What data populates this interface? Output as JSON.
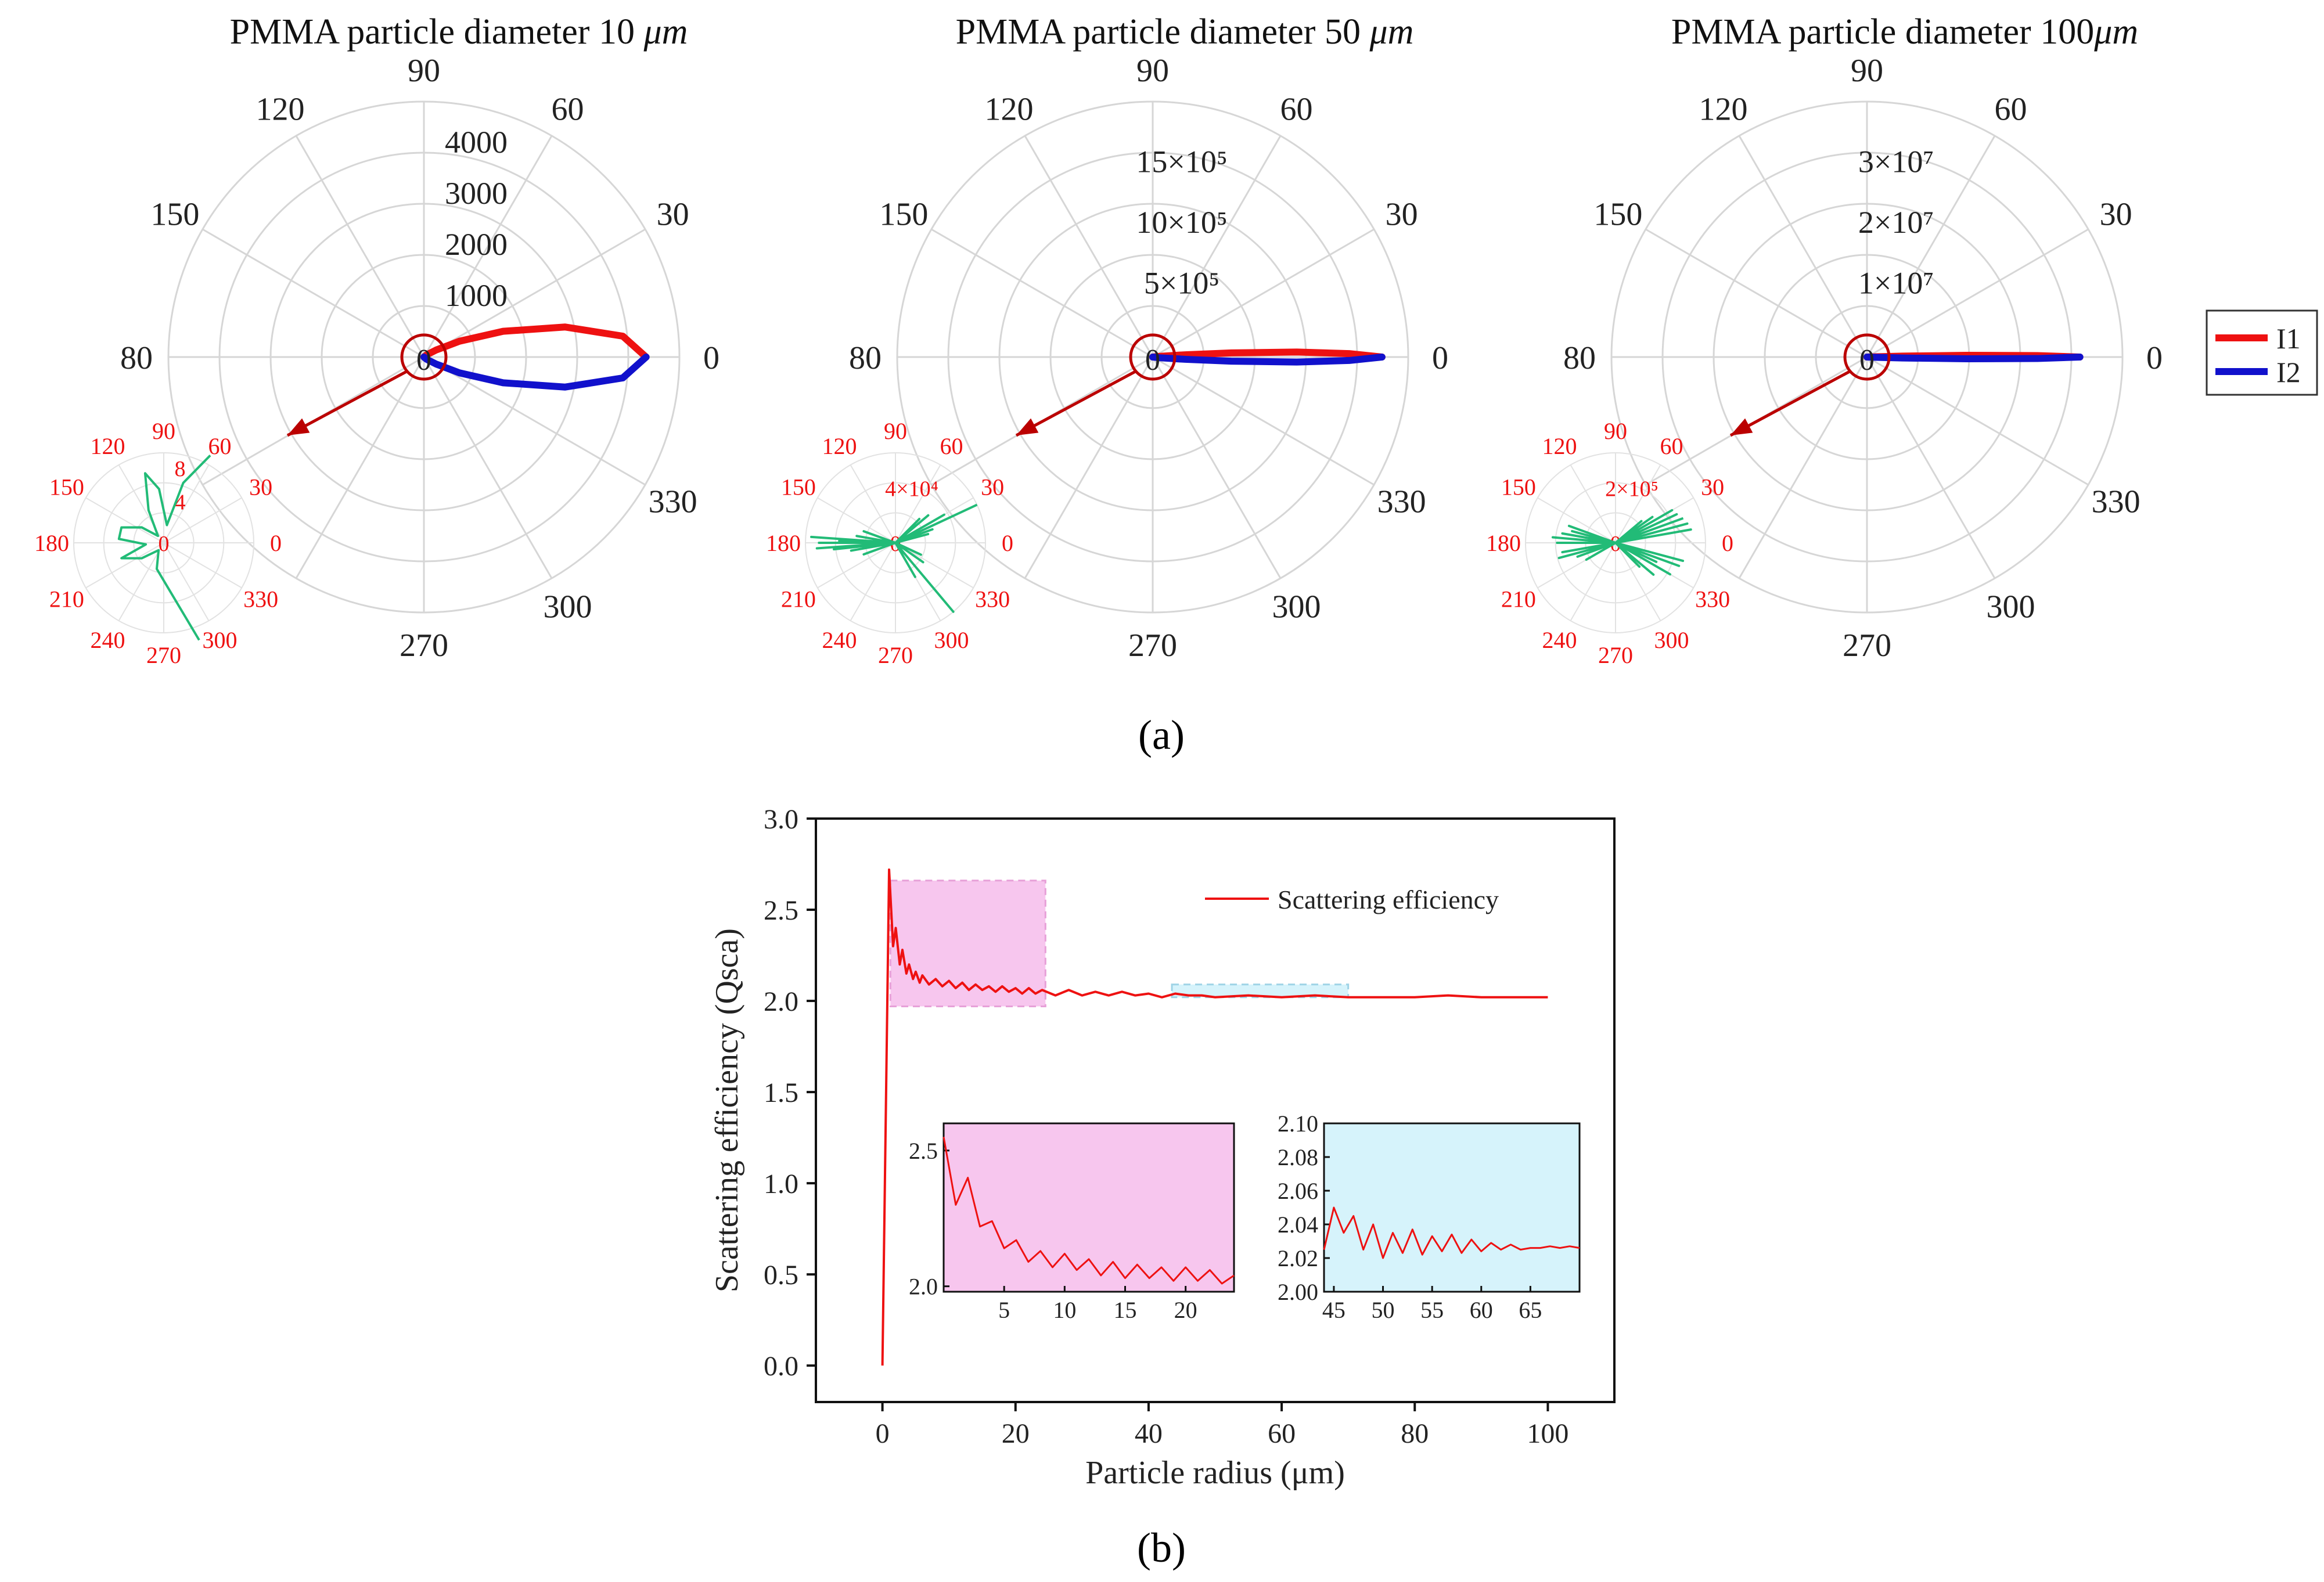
{
  "panel_labels": {
    "a": "(a)",
    "b": "(b)"
  },
  "legend": {
    "items": [
      {
        "label": "I1",
        "color": "#ee1111"
      },
      {
        "label": "I2",
        "color": "#1111cc"
      }
    ]
  },
  "colors": {
    "i1": "#ee1111",
    "i2": "#1111cc",
    "inset_polar": "#22bb77",
    "angle_inset": "#ee1111",
    "marker": "#bb0000",
    "grid": "#d6d6d6",
    "pink_box": "#f7c6ee",
    "blue_box": "#d6f3fb",
    "line_b": "#ee1111"
  },
  "chart_data": [
    {
      "type": "polar-line",
      "title_text": "PMMA particle diameter 10 ",
      "title_unit": "μm",
      "angle_labels": [
        "0",
        "30",
        "60",
        "90",
        "120",
        "150",
        "80",
        "270",
        "300",
        "330"
      ],
      "radial_ticks": [
        "1000",
        "2000",
        "3000",
        "4000"
      ],
      "rmax": 4600,
      "series": [
        {
          "name": "I1",
          "points": [
            [
              0,
              4000
            ],
            [
              6,
              3600
            ],
            [
              12,
              2600
            ],
            [
              18,
              1500
            ],
            [
              24,
              700
            ],
            [
              30,
              250
            ],
            [
              40,
              60
            ],
            [
              60,
              0
            ]
          ]
        },
        {
          "name": "I2",
          "points": [
            [
              0,
              4000
            ],
            [
              -6,
              3600
            ],
            [
              -12,
              2600
            ],
            [
              -18,
              1500
            ],
            [
              -24,
              700
            ],
            [
              -30,
              250
            ],
            [
              -40,
              60
            ],
            [
              -60,
              0
            ]
          ]
        }
      ],
      "inset": {
        "angle_labels": [
          "90",
          "60",
          "30",
          "0",
          "330",
          "300",
          "270",
          "240",
          "210",
          "180",
          "150",
          "120"
        ],
        "radial_ticks": [
          "4",
          "8"
        ],
        "center_label": "0",
        "rmax": 10,
        "points": [
          [
            62,
            11
          ],
          [
            72,
            7
          ],
          [
            80,
            2
          ],
          [
            95,
            6
          ],
          [
            105,
            8
          ],
          [
            115,
            4
          ],
          [
            130,
            1
          ],
          [
            145,
            3
          ],
          [
            160,
            5
          ],
          [
            175,
            5
          ],
          [
            185,
            2
          ],
          [
            200,
            5
          ],
          [
            215,
            3
          ],
          [
            235,
            1
          ],
          [
            255,
            3
          ],
          [
            290,
            14
          ]
        ]
      }
    },
    {
      "type": "polar-line",
      "title_text": "PMMA particle diameter 50 ",
      "title_unit": "μm",
      "angle_labels": [
        "0",
        "30",
        "60",
        "90",
        "120",
        "150",
        "80",
        "270",
        "300",
        "330"
      ],
      "radial_ticks": [
        "5×10⁵",
        "10×10⁵",
        "15×10⁵"
      ],
      "rmax": 1950000,
      "series": [
        {
          "name": "I1",
          "points": [
            [
              0,
              1750000
            ],
            [
              1,
              1500000
            ],
            [
              2,
              1100000
            ],
            [
              3,
              600000
            ],
            [
              4,
              250000
            ],
            [
              6,
              50000
            ],
            [
              10,
              0
            ]
          ]
        },
        {
          "name": "I2",
          "points": [
            [
              0,
              1750000
            ],
            [
              -1,
              1500000
            ],
            [
              -2,
              1100000
            ],
            [
              -3,
              600000
            ],
            [
              -4,
              250000
            ],
            [
              -6,
              50000
            ],
            [
              -10,
              0
            ]
          ]
        }
      ],
      "inset": {
        "angle_labels": [
          "90",
          "60",
          "30",
          "0",
          "330",
          "300",
          "270",
          "240",
          "210",
          "180",
          "150",
          "120"
        ],
        "radial_ticks": [
          "4×10⁴"
        ],
        "center_label": "0",
        "rmax": 80000,
        "points": [
          [
            25,
            80000
          ],
          [
            20,
            35000
          ],
          [
            30,
            50000
          ],
          [
            15,
            30000
          ],
          [
            40,
            38000
          ],
          [
            30,
            25000
          ],
          [
            45,
            30000
          ],
          [
            20,
            15000
          ],
          [
            310,
            80000
          ],
          [
            325,
            30000
          ],
          [
            300,
            35000
          ],
          [
            335,
            25000
          ],
          [
            176,
            75000
          ],
          [
            180,
            68000
          ],
          [
            184,
            70000
          ],
          [
            178,
            50000
          ],
          [
            186,
            55000
          ],
          [
            160,
            30000
          ],
          [
            170,
            35000
          ],
          [
            190,
            40000
          ],
          [
            200,
            30000
          ]
        ]
      }
    },
    {
      "type": "polar-line",
      "title_text": "PMMA particle diameter 100",
      "title_unit": "μm",
      "angle_labels": [
        "0",
        "30",
        "60",
        "90",
        "120",
        "150",
        "80",
        "270",
        "300",
        "330"
      ],
      "radial_ticks": [
        "1×10⁷",
        "2×10⁷",
        "3×10⁷"
      ],
      "rmax": 36000000,
      "series": [
        {
          "name": "I1",
          "points": [
            [
              0,
              30000000
            ],
            [
              0.5,
              24000000
            ],
            [
              1,
              14000000
            ],
            [
              1.5,
              5000000
            ],
            [
              2,
              1000000
            ],
            [
              4,
              0
            ]
          ]
        },
        {
          "name": "I2",
          "points": [
            [
              0,
              30000000
            ],
            [
              -0.5,
              24000000
            ],
            [
              -1,
              14000000
            ],
            [
              -1.5,
              5000000
            ],
            [
              -2,
              1000000
            ],
            [
              -4,
              0
            ]
          ]
        }
      ],
      "inset": {
        "angle_labels": [
          "90",
          "60",
          "30",
          "0",
          "330",
          "300",
          "270",
          "240",
          "210",
          "180",
          "150",
          "120"
        ],
        "radial_ticks": [
          "2×10⁵"
        ],
        "center_label": "0",
        "rmax": 400000,
        "points": [
          [
            20,
            320000
          ],
          [
            25,
            300000
          ],
          [
            30,
            290000
          ],
          [
            15,
            330000
          ],
          [
            10,
            340000
          ],
          [
            35,
            200000
          ],
          [
            40,
            150000
          ],
          [
            330,
            280000
          ],
          [
            340,
            300000
          ],
          [
            345,
            310000
          ],
          [
            335,
            200000
          ],
          [
            320,
            220000
          ],
          [
            315,
            150000
          ],
          [
            175,
            280000
          ],
          [
            170,
            240000
          ],
          [
            165,
            200000
          ],
          [
            160,
            220000
          ],
          [
            180,
            260000
          ],
          [
            190,
            240000
          ],
          [
            195,
            260000
          ],
          [
            200,
            180000
          ],
          [
            210,
            150000
          ]
        ]
      }
    },
    {
      "type": "line",
      "xlabel": "Particle radius (μm)",
      "ylabel": "Scattering efficiency (Qsca)",
      "xlim": [
        -10,
        110
      ],
      "ylim": [
        -0.2,
        3.0
      ],
      "xticks": [
        "0",
        "20",
        "40",
        "60",
        "80",
        "100"
      ],
      "yticks": [
        "0.0",
        "0.5",
        "1.0",
        "1.5",
        "2.0",
        "2.5",
        "3.0"
      ],
      "legend": "Scattering efficiency",
      "series": [
        {
          "name": "Scattering efficiency",
          "x": [
            0,
            1,
            1.6,
            2,
            2.6,
            3,
            3.6,
            4,
            4.6,
            5,
            5.6,
            6,
            7,
            8,
            9,
            10,
            11,
            12,
            13,
            14,
            15,
            16,
            17,
            18,
            19,
            20,
            21,
            22,
            23,
            24,
            26,
            28,
            30,
            32,
            34,
            36,
            38,
            40,
            42,
            44,
            46,
            48,
            50,
            55,
            60,
            65,
            70,
            75,
            80,
            85,
            90,
            95,
            100
          ],
          "y": [
            0,
            2.72,
            2.3,
            2.4,
            2.2,
            2.28,
            2.15,
            2.2,
            2.12,
            2.16,
            2.1,
            2.14,
            2.09,
            2.12,
            2.08,
            2.11,
            2.07,
            2.1,
            2.06,
            2.09,
            2.06,
            2.08,
            2.05,
            2.08,
            2.05,
            2.07,
            2.04,
            2.07,
            2.04,
            2.06,
            2.03,
            2.06,
            2.03,
            2.05,
            2.03,
            2.05,
            2.03,
            2.04,
            2.02,
            2.04,
            2.03,
            2.03,
            2.02,
            2.03,
            2.02,
            2.03,
            2.02,
            2.02,
            2.02,
            2.03,
            2.02,
            2.02,
            2.02
          ]
        }
      ],
      "insets": [
        {
          "xlim": [
            0,
            24
          ],
          "ylim": [
            1.98,
            2.6
          ],
          "xticks": [
            "5",
            "10",
            "15",
            "20"
          ],
          "yticks": [
            "2.0",
            "2.5"
          ],
          "x": [
            0,
            1,
            2,
            3,
            4,
            5,
            6,
            7,
            8,
            9,
            10,
            11,
            12,
            13,
            14,
            15,
            16,
            17,
            18,
            19,
            20,
            21,
            22,
            23,
            24
          ],
          "y": [
            2.55,
            2.3,
            2.4,
            2.22,
            2.24,
            2.14,
            2.17,
            2.09,
            2.13,
            2.07,
            2.12,
            2.06,
            2.1,
            2.04,
            2.09,
            2.03,
            2.08,
            2.03,
            2.07,
            2.02,
            2.07,
            2.02,
            2.06,
            2.01,
            2.04
          ]
        },
        {
          "xlim": [
            44,
            70
          ],
          "ylim": [
            2.0,
            2.1
          ],
          "xticks": [
            "45",
            "50",
            "55",
            "60",
            "65"
          ],
          "yticks": [
            "2.00",
            "2.02",
            "2.04",
            "2.06",
            "2.08",
            "2.10"
          ],
          "x": [
            44,
            45,
            46,
            47,
            48,
            49,
            50,
            51,
            52,
            53,
            54,
            55,
            56,
            57,
            58,
            59,
            60,
            61,
            62,
            63,
            64,
            65,
            66,
            67,
            68,
            69,
            70
          ],
          "y": [
            2.025,
            2.05,
            2.035,
            2.045,
            2.025,
            2.04,
            2.02,
            2.035,
            2.023,
            2.037,
            2.022,
            2.033,
            2.024,
            2.034,
            2.023,
            2.031,
            2.024,
            2.029,
            2.025,
            2.028,
            2.025,
            2.026,
            2.026,
            2.027,
            2.026,
            2.027,
            2.026
          ]
        }
      ]
    }
  ]
}
